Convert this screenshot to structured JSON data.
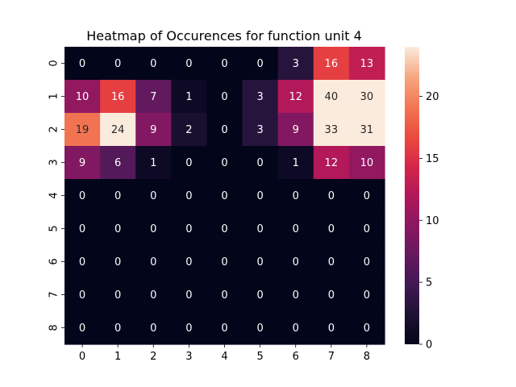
{
  "chart_data": {
    "type": "heatmap",
    "title": "Heatmap of Occurences for function unit 4",
    "xlabel": "",
    "ylabel": "",
    "x_categories": [
      "0",
      "1",
      "2",
      "3",
      "4",
      "5",
      "6",
      "7",
      "8"
    ],
    "y_categories": [
      "0",
      "1",
      "2",
      "3",
      "4",
      "5",
      "6",
      "7",
      "8"
    ],
    "values": [
      [
        0,
        0,
        0,
        0,
        0,
        0,
        3,
        16,
        13
      ],
      [
        10,
        16,
        7,
        1,
        0,
        3,
        12,
        40,
        30
      ],
      [
        19,
        24,
        9,
        2,
        0,
        3,
        9,
        33,
        31
      ],
      [
        9,
        6,
        1,
        0,
        0,
        0,
        1,
        12,
        10
      ],
      [
        0,
        0,
        0,
        0,
        0,
        0,
        0,
        0,
        0
      ],
      [
        0,
        0,
        0,
        0,
        0,
        0,
        0,
        0,
        0
      ],
      [
        0,
        0,
        0,
        0,
        0,
        0,
        0,
        0,
        0
      ],
      [
        0,
        0,
        0,
        0,
        0,
        0,
        0,
        0,
        0
      ],
      [
        0,
        0,
        0,
        0,
        0,
        0,
        0,
        0,
        0
      ]
    ],
    "color_range": [
      0,
      24
    ],
    "colormap": "rocket",
    "colorbar_ticks": [
      0,
      5,
      10,
      15,
      20
    ],
    "grid": false,
    "legend": "colorbar-right"
  }
}
